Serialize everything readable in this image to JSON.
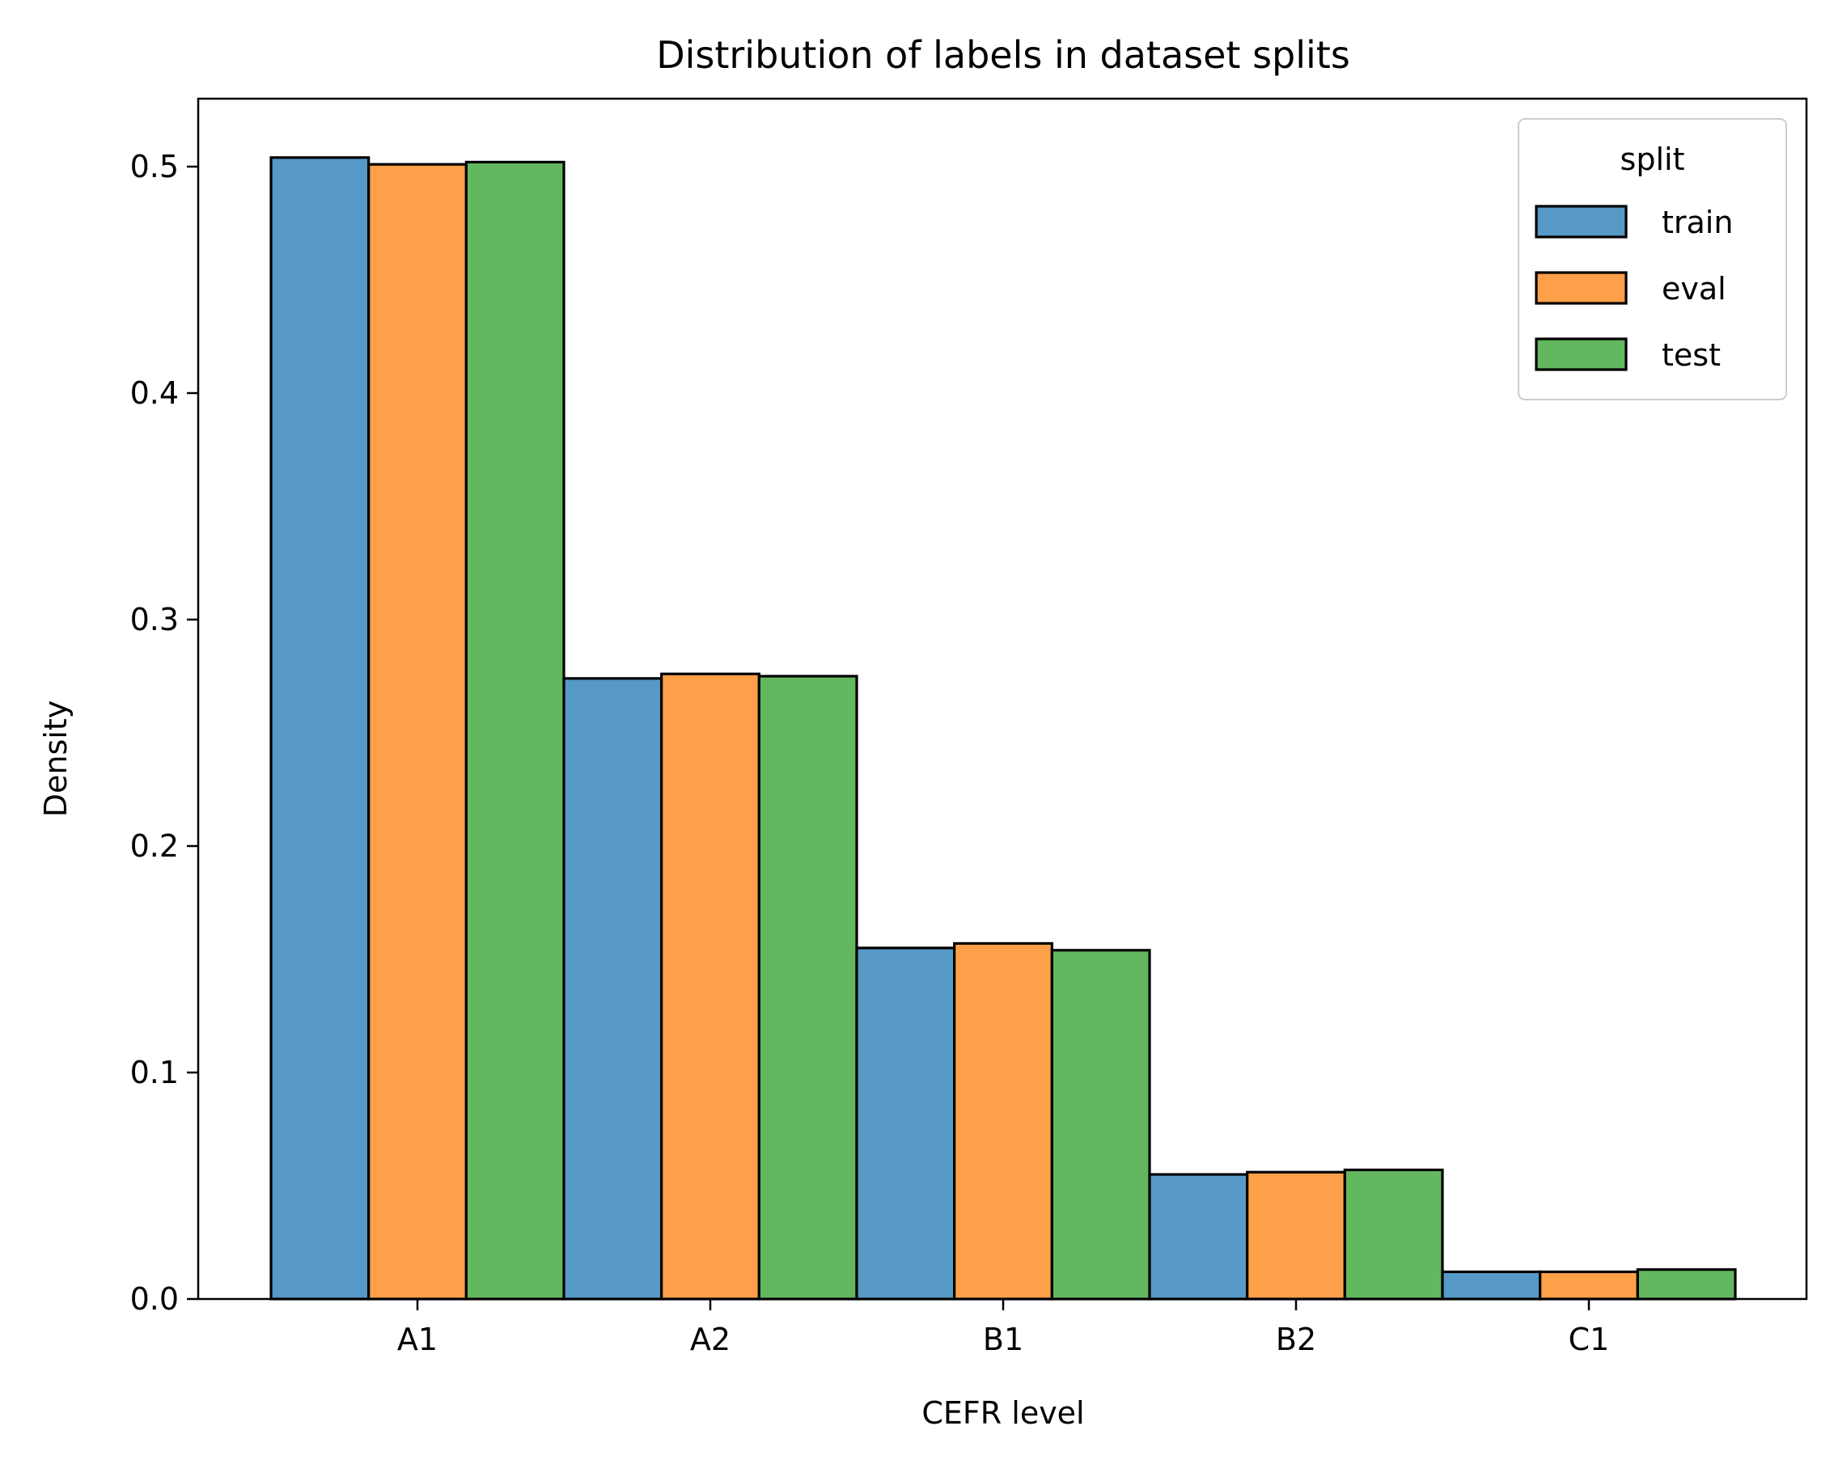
{
  "chart_data": {
    "type": "bar",
    "title": "Distribution of labels in dataset splits",
    "xlabel": "CEFR level",
    "ylabel": "Density",
    "categories": [
      "A1",
      "A2",
      "B1",
      "B2",
      "C1"
    ],
    "series": [
      {
        "name": "train",
        "color": "#5799c6",
        "values": [
          0.504,
          0.274,
          0.155,
          0.055,
          0.012
        ]
      },
      {
        "name": "eval",
        "color": "#fe9f4a",
        "values": [
          0.501,
          0.276,
          0.157,
          0.056,
          0.012
        ]
      },
      {
        "name": "test",
        "color": "#63b75f",
        "values": [
          0.502,
          0.275,
          0.154,
          0.057,
          0.013
        ]
      }
    ],
    "ylim": [
      0,
      0.53
    ],
    "yticks": [
      0.0,
      0.1,
      0.2,
      0.3,
      0.4,
      0.5
    ],
    "ytick_labels": [
      "0.0",
      "0.1",
      "0.2",
      "0.3",
      "0.4",
      "0.5"
    ],
    "legend": {
      "title": "split",
      "position": "top-right"
    },
    "grid": false
  }
}
